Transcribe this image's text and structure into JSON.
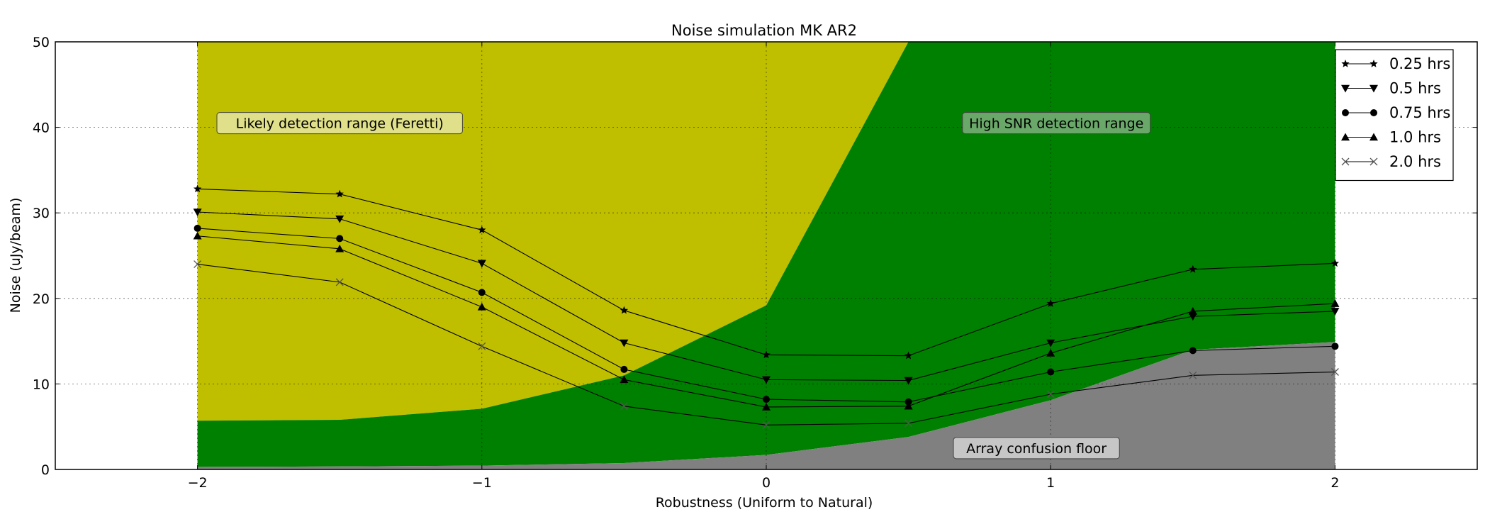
{
  "chart_data": {
    "type": "line",
    "title": "Noise simulation MK AR2",
    "xlabel": "Robustness (Uniform to Natural)",
    "ylabel": "Noise (uJy/beam)",
    "xlim": [
      -2.5,
      2.5
    ],
    "ylim": [
      0,
      50
    ],
    "xticks": [
      -2,
      -1,
      0,
      1,
      2
    ],
    "xtick_labels": [
      "−2",
      "−1",
      "0",
      "1",
      "2"
    ],
    "yticks": [
      0,
      10,
      20,
      30,
      40,
      50
    ],
    "ytick_labels": [
      "0",
      "10",
      "20",
      "30",
      "40",
      "50"
    ],
    "grid": true,
    "legend_position": "top-right",
    "x": [
      -2,
      -1.5,
      -1,
      -0.5,
      0,
      0.5,
      1,
      1.5,
      2
    ],
    "series": [
      {
        "name": "0.25 hrs",
        "marker": "star",
        "values": [
          32.8,
          32.2,
          28.0,
          18.6,
          13.4,
          13.3,
          19.4,
          23.4,
          24.1
        ]
      },
      {
        "name": "0.5 hrs",
        "marker": "triangle-down",
        "values": [
          30.1,
          29.3,
          24.1,
          14.8,
          10.5,
          10.4,
          14.8,
          17.9,
          18.5
        ]
      },
      {
        "name": "0.75 hrs",
        "marker": "circle",
        "values": [
          28.2,
          27.0,
          20.7,
          11.7,
          8.2,
          7.9,
          11.4,
          13.9,
          14.4
        ]
      },
      {
        "name": "1.0 hrs",
        "marker": "triangle-up",
        "values": [
          27.3,
          25.8,
          19.0,
          10.5,
          7.3,
          7.4,
          13.6,
          18.5,
          19.4
        ]
      },
      {
        "name": "2.0 hrs",
        "marker": "x",
        "values": [
          24.0,
          21.9,
          14.4,
          7.4,
          5.2,
          5.4,
          8.8,
          11.0,
          11.4
        ]
      }
    ],
    "regions": [
      {
        "name": "likely-detection",
        "label": "Likely detection range (Feretti)",
        "color": "#bfbf00",
        "lower": [
          5.7,
          5.8,
          7.1,
          11.0,
          19.2,
          50,
          50,
          50,
          50
        ],
        "upper": [
          50,
          50,
          50,
          50,
          50,
          50,
          50,
          50,
          50
        ]
      },
      {
        "name": "high-snr",
        "label": "High SNR detection range",
        "color": "#008000",
        "lower": [
          0.3,
          0.35,
          0.45,
          0.75,
          1.7,
          3.8,
          8.1,
          14.0,
          14.9
        ],
        "upper": [
          5.7,
          5.8,
          7.1,
          11.0,
          19.2,
          50,
          50,
          50,
          50
        ]
      },
      {
        "name": "confusion-floor",
        "label": "Array confusion floor",
        "color": "#808080",
        "lower": [
          0,
          0,
          0,
          0,
          0,
          0,
          0,
          0,
          0
        ],
        "upper": [
          0.3,
          0.35,
          0.45,
          0.75,
          1.7,
          3.8,
          8.1,
          14.0,
          14.9
        ]
      }
    ],
    "annotations": [
      {
        "text": "Likely detection range (Feretti)",
        "x": -1.5,
        "y": 40.5,
        "bg": "#e0e08a"
      },
      {
        "text": "High SNR detection range",
        "x": 1.02,
        "y": 40.5,
        "bg": "#6aa86a"
      },
      {
        "text": "Array confusion floor",
        "x": 0.95,
        "y": 2.5,
        "bg": "#c6c6c6"
      }
    ]
  }
}
